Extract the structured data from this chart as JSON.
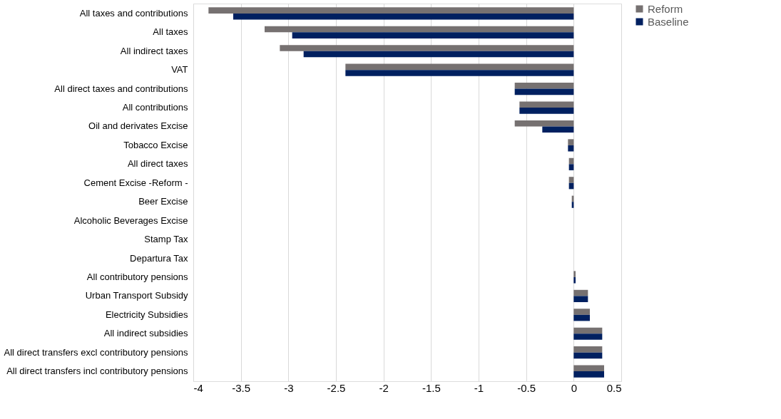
{
  "chart_data": {
    "type": "bar",
    "orientation": "horizontal",
    "categories": [
      "All taxes and contributions",
      "All taxes",
      "All indirect taxes",
      "VAT ",
      "All direct taxes and contributions",
      "All contributions",
      "Oil and derivates Excise",
      "Tobacco Excise ",
      "All direct taxes",
      "Cement Excise -Reform -",
      "Beer Excise ",
      "Alcoholic Beverages Excise ",
      "Stamp Tax",
      "Departura Tax ",
      "All contributory pensions",
      "Urban Transport Subsidy ",
      "Electricity Subsidies ",
      "All indirect subsidies",
      "All direct transfers excl contributory pensions",
      "All direct transfers incl contributory pensions"
    ],
    "series": [
      {
        "name": "Reform",
        "color": "#767171",
        "values": [
          -3.84,
          -3.25,
          -3.09,
          -2.4,
          -0.62,
          -0.57,
          -0.62,
          -0.06,
          -0.05,
          -0.05,
          -0.02,
          null,
          null,
          0,
          0.02,
          0.15,
          0.17,
          0.3,
          0.3,
          0.32
        ]
      },
      {
        "name": "Baseline",
        "color": "#002060",
        "values": [
          -3.58,
          -2.96,
          -2.84,
          -2.4,
          -0.62,
          -0.57,
          -0.33,
          -0.06,
          -0.05,
          -0.05,
          -0.02,
          null,
          null,
          0,
          0.02,
          0.15,
          0.17,
          0.3,
          0.3,
          0.32
        ]
      }
    ],
    "xlim": [
      -4,
      0.5
    ],
    "xticks": [
      -4,
      -3.5,
      -3,
      -2.5,
      -2,
      -1.5,
      -1,
      -0.5,
      0,
      0.5
    ],
    "grid": "x",
    "legend": "right"
  }
}
